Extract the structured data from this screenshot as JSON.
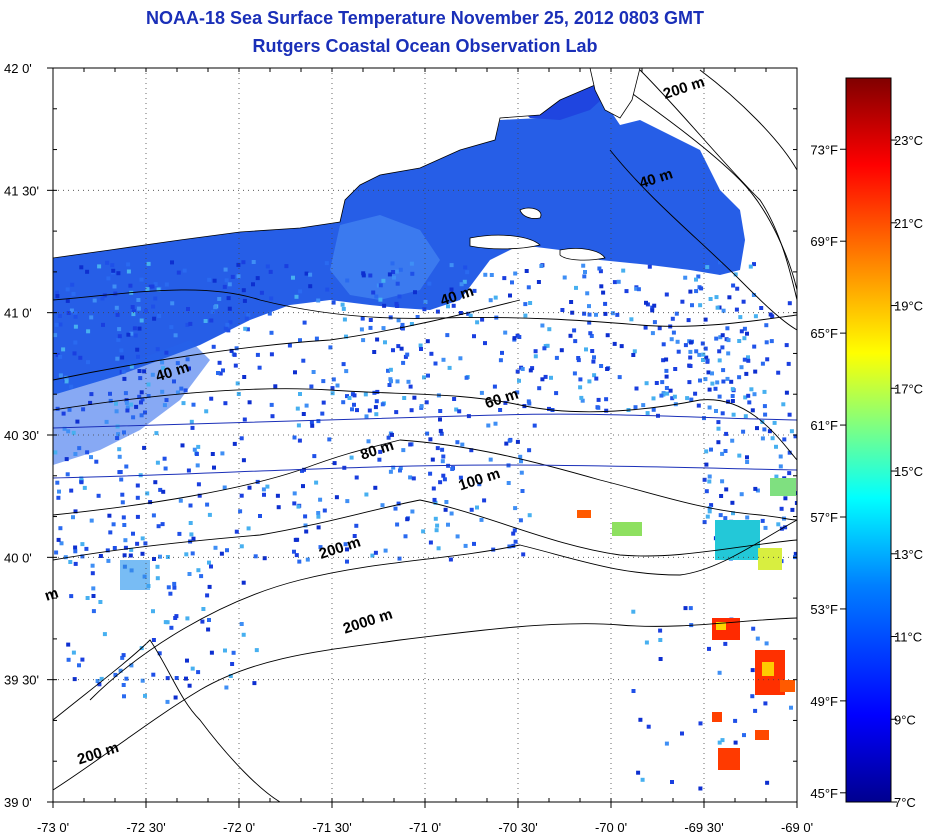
{
  "title": "NOAA-18 Sea Surface Temperature November 25, 2012 0803 GMT",
  "subtitle": "Rutgers Coastal Ocean Observation Lab",
  "map": {
    "lon_range": [
      -73.0,
      -69.0
    ],
    "lat_range": [
      39.0,
      42.0
    ],
    "grid": "dotted",
    "lon_ticks": [
      "-73 0'",
      "-72 30'",
      "-72 0'",
      "-71 30'",
      "-71 0'",
      "-70 30'",
      "-70 0'",
      "-69 30'",
      "-69 0'"
    ],
    "lat_ticks": [
      "42 0'",
      "41 30'",
      "41 0'",
      "40 30'",
      "40 0'",
      "39 30'",
      "39 0'"
    ],
    "contour_labels": [
      {
        "text": "200 m",
        "lon": -69.6,
        "lat": 41.9
      },
      {
        "text": "40 m",
        "lon": -69.75,
        "lat": 41.53
      },
      {
        "text": "40 m",
        "lon": -72.35,
        "lat": 40.74
      },
      {
        "text": "40 m",
        "lon": -70.82,
        "lat": 41.05
      },
      {
        "text": "60 m",
        "lon": -70.58,
        "lat": 40.63
      },
      {
        "text": "80 m",
        "lon": -71.25,
        "lat": 40.42
      },
      {
        "text": "100 m",
        "lon": -70.7,
        "lat": 40.3
      },
      {
        "text": "200 m",
        "lon": -71.45,
        "lat": 40.02
      },
      {
        "text": "2000 m",
        "lon": -71.3,
        "lat": 39.72
      },
      {
        "text": "200 m",
        "lon": -72.75,
        "lat": 39.18
      },
      {
        "text": "m",
        "lon": -73.0,
        "lat": 39.83
      }
    ]
  },
  "colorbar": {
    "min_c": 7,
    "max_c": 24.5,
    "celsius_ticks": [
      "7°C",
      "9°C",
      "11°C",
      "13°C",
      "15°C",
      "17°C",
      "19°C",
      "21°C",
      "23°C"
    ],
    "fahrenheit_ticks": [
      "45°F",
      "49°F",
      "53°F",
      "57°F",
      "61°F",
      "65°F",
      "69°F",
      "73°F"
    ],
    "colors": [
      "#00008f",
      "#0000ff",
      "#0080ff",
      "#00ffff",
      "#80ff80",
      "#ffff00",
      "#ff8000",
      "#ff0000",
      "#800000"
    ]
  }
}
